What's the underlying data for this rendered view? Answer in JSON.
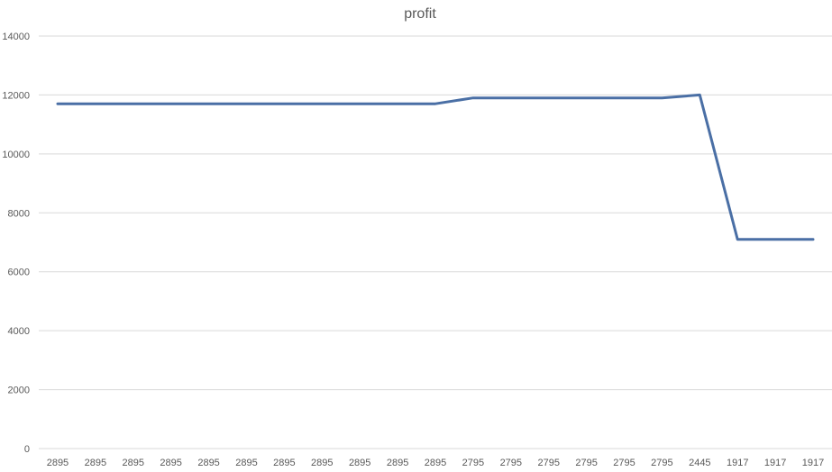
{
  "chart_data": {
    "type": "line",
    "title": "profit",
    "xlabel": "",
    "ylabel": "",
    "categories": [
      "2895",
      "2895",
      "2895",
      "2895",
      "2895",
      "2895",
      "2895",
      "2895",
      "2895",
      "2895",
      "2895",
      "2795",
      "2795",
      "2795",
      "2795",
      "2795",
      "2795",
      "2445",
      "1917",
      "1917",
      "1917"
    ],
    "series": [
      {
        "values": [
          11700,
          11700,
          11700,
          11700,
          11700,
          11700,
          11700,
          11700,
          11700,
          11700,
          11700,
          11900,
          11900,
          11900,
          11900,
          11900,
          11900,
          12000,
          7100,
          7100,
          7100
        ]
      }
    ],
    "ylim": [
      0,
      14000
    ],
    "yticks": [
      "0",
      "2000",
      "4000",
      "6000",
      "8000",
      "10000",
      "12000",
      "14000"
    ],
    "grid": true,
    "legend": "none",
    "colors": {
      "line": "#4a6fa5",
      "grid": "#d9d9d9",
      "text": "#595959"
    }
  }
}
